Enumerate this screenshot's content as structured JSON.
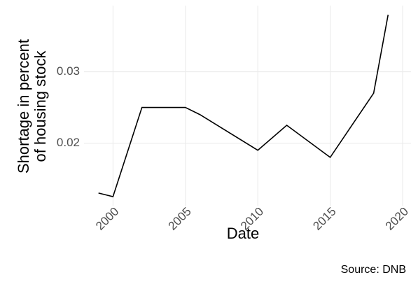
{
  "chart_data": {
    "type": "line",
    "xlabel": "Date",
    "ylabel": [
      "Shortage in percent",
      "of housing stock"
    ],
    "caption": "Source: DNB",
    "x": [
      1999,
      2000,
      2002,
      2005,
      2006,
      2010,
      2012,
      2015,
      2018,
      2019
    ],
    "series": [
      {
        "color": "#000000",
        "values": [
          0.013,
          0.0125,
          0.025,
          0.025,
          0.024,
          0.019,
          0.0225,
          0.018,
          0.027,
          0.038
        ]
      }
    ],
    "xlim": [
      1998,
      2020
    ],
    "xticks": [
      2000,
      2005,
      2010,
      2015,
      2020
    ],
    "ylim": [
      0.011225,
      0.039275
    ],
    "yticks": [
      0.02,
      0.03
    ],
    "grid": true
  }
}
